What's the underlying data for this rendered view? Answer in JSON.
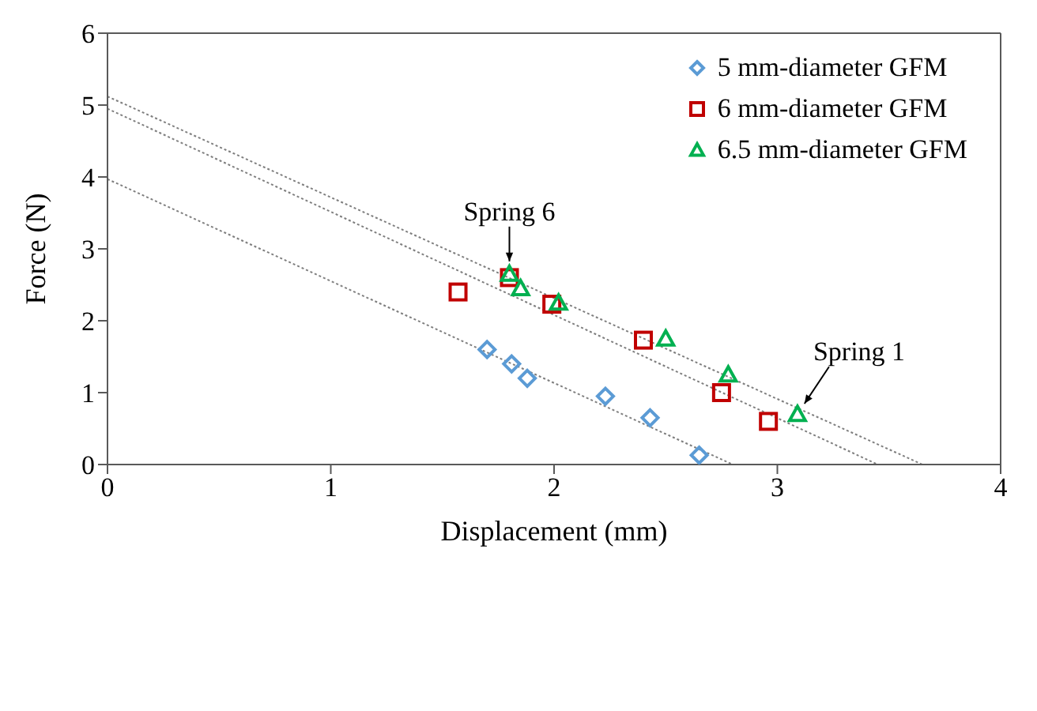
{
  "chart_data": {
    "type": "scatter",
    "xlabel": "Displacement (mm)",
    "ylabel": "Force (N)",
    "xlim": [
      0,
      4
    ],
    "ylim": [
      0,
      6
    ],
    "xticks": [
      0,
      1,
      2,
      3,
      4
    ],
    "yticks": [
      0,
      1,
      2,
      3,
      4,
      5,
      6
    ],
    "grid": false,
    "legend": "top right",
    "series": [
      {
        "name": "5 mm-diameter GFM",
        "marker": "diamond",
        "color": "#5b9bd5",
        "x": [
          1.7,
          1.81,
          1.88,
          2.23,
          2.43,
          2.65
        ],
        "values": [
          1.6,
          1.4,
          1.2,
          0.95,
          0.65,
          0.13
        ]
      },
      {
        "name": "6 mm-diameter GFM",
        "marker": "square",
        "color": "#c00000",
        "x": [
          1.57,
          1.8,
          1.99,
          2.4,
          2.75,
          2.96
        ],
        "values": [
          2.4,
          2.6,
          2.23,
          1.73,
          1.0,
          0.6
        ]
      },
      {
        "name": "6.5 mm-diameter GFM",
        "marker": "triangle",
        "color": "#00b050",
        "x": [
          1.8,
          1.85,
          2.02,
          2.5,
          2.78,
          3.09
        ],
        "values": [
          2.65,
          2.45,
          2.25,
          1.75,
          1.25,
          0.7
        ]
      },
      {
        "type": "line",
        "marker": "none",
        "line_style": "dotted",
        "color": "#7f7f7f",
        "x": [
          0,
          2.8
        ],
        "values": [
          3.97,
          0
        ]
      },
      {
        "type": "line",
        "marker": "none",
        "line_style": "dotted",
        "color": "#7f7f7f",
        "x": [
          0,
          3.45
        ],
        "values": [
          4.95,
          0
        ]
      },
      {
        "type": "line",
        "marker": "none",
        "line_style": "dotted",
        "color": "#7f7f7f",
        "x": [
          0,
          3.65
        ],
        "values": [
          5.12,
          0
        ]
      }
    ],
    "annotations": [
      {
        "text": "Spring 6",
        "x": 1.8,
        "y": 2.65
      },
      {
        "text": "Spring 1",
        "x": 3.09,
        "y": 0.7
      }
    ]
  }
}
